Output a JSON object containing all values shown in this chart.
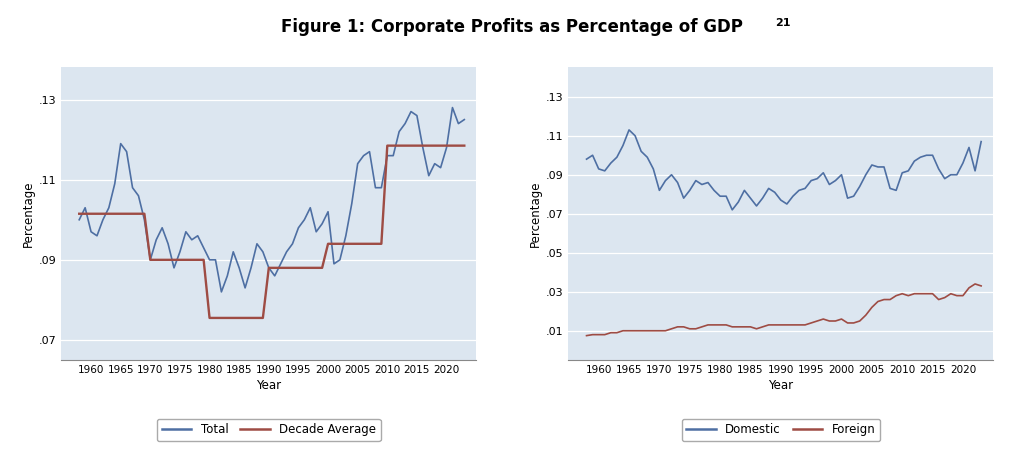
{
  "title": "Figure 1: Corporate Profits as Percentage of GDP",
  "background_color": "#dce6f0",
  "fig_background": "#ffffff",
  "total_years": [
    1958,
    1959,
    1960,
    1961,
    1962,
    1963,
    1964,
    1965,
    1966,
    1967,
    1968,
    1969,
    1970,
    1971,
    1972,
    1973,
    1974,
    1975,
    1976,
    1977,
    1978,
    1979,
    1980,
    1981,
    1982,
    1983,
    1984,
    1985,
    1986,
    1987,
    1988,
    1989,
    1990,
    1991,
    1992,
    1993,
    1994,
    1995,
    1996,
    1997,
    1998,
    1999,
    2000,
    2001,
    2002,
    2003,
    2004,
    2005,
    2006,
    2007,
    2008,
    2009,
    2010,
    2011,
    2012,
    2013,
    2014,
    2015,
    2016,
    2017,
    2018,
    2019,
    2020,
    2021,
    2022,
    2023
  ],
  "total_values": [
    0.1,
    0.103,
    0.097,
    0.096,
    0.1,
    0.103,
    0.109,
    0.119,
    0.117,
    0.108,
    0.106,
    0.1,
    0.09,
    0.095,
    0.098,
    0.094,
    0.088,
    0.092,
    0.097,
    0.095,
    0.096,
    0.093,
    0.09,
    0.09,
    0.082,
    0.086,
    0.092,
    0.088,
    0.083,
    0.088,
    0.094,
    0.092,
    0.088,
    0.086,
    0.089,
    0.092,
    0.094,
    0.098,
    0.1,
    0.103,
    0.097,
    0.099,
    0.102,
    0.089,
    0.09,
    0.096,
    0.104,
    0.114,
    0.116,
    0.117,
    0.108,
    0.108,
    0.116,
    0.116,
    0.122,
    0.124,
    0.127,
    0.126,
    0.118,
    0.111,
    0.114,
    0.113,
    0.118,
    0.128,
    0.124,
    0.125
  ],
  "decade_avg_years": [
    1958,
    1969,
    1970,
    1979,
    1980,
    1989,
    1990,
    1999,
    2000,
    2009,
    2010,
    2023
  ],
  "decade_avg_values": [
    0.1015,
    0.1015,
    0.09,
    0.09,
    0.0755,
    0.0755,
    0.088,
    0.088,
    0.094,
    0.094,
    0.1185,
    0.1185
  ],
  "domestic_years": [
    1958,
    1959,
    1960,
    1961,
    1962,
    1963,
    1964,
    1965,
    1966,
    1967,
    1968,
    1969,
    1970,
    1971,
    1972,
    1973,
    1974,
    1975,
    1976,
    1977,
    1978,
    1979,
    1980,
    1981,
    1982,
    1983,
    1984,
    1985,
    1986,
    1987,
    1988,
    1989,
    1990,
    1991,
    1992,
    1993,
    1994,
    1995,
    1996,
    1997,
    1998,
    1999,
    2000,
    2001,
    2002,
    2003,
    2004,
    2005,
    2006,
    2007,
    2008,
    2009,
    2010,
    2011,
    2012,
    2013,
    2014,
    2015,
    2016,
    2017,
    2018,
    2019,
    2020,
    2021,
    2022,
    2023
  ],
  "domestic_values": [
    0.098,
    0.1,
    0.093,
    0.092,
    0.096,
    0.099,
    0.105,
    0.113,
    0.11,
    0.102,
    0.099,
    0.093,
    0.082,
    0.087,
    0.09,
    0.086,
    0.078,
    0.082,
    0.087,
    0.085,
    0.086,
    0.082,
    0.079,
    0.079,
    0.072,
    0.076,
    0.082,
    0.078,
    0.074,
    0.078,
    0.083,
    0.081,
    0.077,
    0.075,
    0.079,
    0.082,
    0.083,
    0.087,
    0.088,
    0.091,
    0.085,
    0.087,
    0.09,
    0.078,
    0.079,
    0.084,
    0.09,
    0.095,
    0.094,
    0.094,
    0.083,
    0.082,
    0.091,
    0.092,
    0.097,
    0.099,
    0.1,
    0.1,
    0.093,
    0.088,
    0.09,
    0.09,
    0.096,
    0.104,
    0.092,
    0.107
  ],
  "foreign_years": [
    1958,
    1959,
    1960,
    1961,
    1962,
    1963,
    1964,
    1965,
    1966,
    1967,
    1968,
    1969,
    1970,
    1971,
    1972,
    1973,
    1974,
    1975,
    1976,
    1977,
    1978,
    1979,
    1980,
    1981,
    1982,
    1983,
    1984,
    1985,
    1986,
    1987,
    1988,
    1989,
    1990,
    1991,
    1992,
    1993,
    1994,
    1995,
    1996,
    1997,
    1998,
    1999,
    2000,
    2001,
    2002,
    2003,
    2004,
    2005,
    2006,
    2007,
    2008,
    2009,
    2010,
    2011,
    2012,
    2013,
    2014,
    2015,
    2016,
    2017,
    2018,
    2019,
    2020,
    2021,
    2022,
    2023
  ],
  "foreign_values": [
    0.0075,
    0.008,
    0.008,
    0.008,
    0.009,
    0.009,
    0.01,
    0.01,
    0.01,
    0.01,
    0.01,
    0.01,
    0.01,
    0.01,
    0.011,
    0.012,
    0.012,
    0.011,
    0.011,
    0.012,
    0.013,
    0.013,
    0.013,
    0.013,
    0.012,
    0.012,
    0.012,
    0.012,
    0.011,
    0.012,
    0.013,
    0.013,
    0.013,
    0.013,
    0.013,
    0.013,
    0.013,
    0.014,
    0.015,
    0.016,
    0.015,
    0.015,
    0.016,
    0.014,
    0.014,
    0.015,
    0.018,
    0.022,
    0.025,
    0.026,
    0.026,
    0.028,
    0.029,
    0.028,
    0.029,
    0.029,
    0.029,
    0.029,
    0.026,
    0.027,
    0.029,
    0.028,
    0.028,
    0.032,
    0.034,
    0.033
  ],
  "left_ylabel": "Percentage",
  "right_ylabel": "Percentage",
  "xlabel": "Year",
  "left_yticks": [
    0.07,
    0.09,
    0.11,
    0.13
  ],
  "left_ytick_labels": [
    ".07",
    ".09",
    ".11",
    ".13"
  ],
  "left_ylim": [
    0.065,
    0.138
  ],
  "right_yticks": [
    0.01,
    0.03,
    0.05,
    0.07,
    0.09,
    0.11,
    0.13
  ],
  "right_ytick_labels": [
    ".01",
    ".03",
    ".05",
    ".07",
    ".09",
    ".11",
    ".13"
  ],
  "right_ylim": [
    -0.005,
    0.145
  ],
  "xlim": [
    1955,
    2025
  ],
  "xticks": [
    1960,
    1965,
    1970,
    1975,
    1980,
    1985,
    1990,
    1995,
    2000,
    2005,
    2010,
    2015,
    2020
  ],
  "blue_color": "#4e6fa3",
  "red_color": "#9e4c44",
  "line_width": 1.2
}
